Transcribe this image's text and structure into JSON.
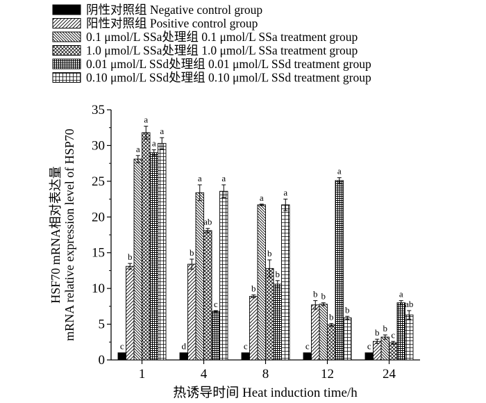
{
  "chart_data": {
    "type": "bar",
    "categories": [
      "1",
      "4",
      "8",
      "12",
      "24"
    ],
    "xlabel": "热诱导时间  Heat induction  time/h",
    "ylabel_line1": "HSF70 mRNA相对表达量",
    "ylabel_line2": "mRNA relative expression level of HSP70",
    "ylim": [
      0,
      35
    ],
    "yticks": [
      "0",
      "5",
      "10",
      "15",
      "20",
      "25",
      "30",
      "35"
    ],
    "legend_position": "top",
    "series": [
      {
        "name": "阴性对照组 Negative control group",
        "pattern": "solid",
        "values": [
          1.0,
          1.0,
          1.0,
          1.0,
          1.0
        ],
        "errors": [
          0,
          0,
          0,
          0,
          0
        ],
        "labels": [
          "c",
          "d",
          "c",
          "c",
          "c"
        ]
      },
      {
        "name": "阳性对照组 Positive control group",
        "pattern": "diag-right",
        "values": [
          13.1,
          13.4,
          8.9,
          7.7,
          2.6
        ],
        "errors": [
          0.4,
          0.7,
          0.2,
          0.6,
          0.3
        ],
        "labels": [
          "b",
          "b",
          "b",
          "b",
          "b"
        ]
      },
      {
        "name": "0.1 μmol/L SSa处理组 0.1 μmol/L SSa treatment group",
        "pattern": "diag-left",
        "values": [
          28.1,
          23.4,
          21.7,
          7.8,
          3.2
        ],
        "errors": [
          0.5,
          1.1,
          0.1,
          0.2,
          0.3
        ],
        "labels": [
          "a",
          "a",
          "a",
          "b",
          "b"
        ]
      },
      {
        "name": "1.0 μmol/L SSa处理组 1.0 μmol/L SSa treatment group",
        "pattern": "crosshatch",
        "values": [
          31.8,
          18.1,
          12.8,
          4.9,
          2.4
        ],
        "errors": [
          0.9,
          0.3,
          1.2,
          0.2,
          0.2
        ],
        "labels": [
          "a",
          "ab",
          "b",
          "b",
          "c"
        ]
      },
      {
        "name": "0.01 μmol/L SSd处理组 0.01 μmol/L SSd treatment group",
        "pattern": "dense-grid",
        "values": [
          29.0,
          6.8,
          10.6,
          25.1,
          8.0
        ],
        "errors": [
          0.4,
          0.1,
          0.5,
          0.4,
          0.3
        ],
        "labels": [
          "a",
          "c",
          "b",
          "a",
          "a"
        ]
      },
      {
        "name": "0.10 μmol/L SSd处理组 0.10 μmol/L SSd treatment group",
        "pattern": "grid",
        "values": [
          30.3,
          23.6,
          21.7,
          5.9,
          6.3
        ],
        "errors": [
          0.8,
          0.9,
          0.8,
          0.2,
          0.6
        ],
        "labels": [
          "a",
          "a",
          "a",
          "b",
          "ab"
        ]
      }
    ]
  }
}
